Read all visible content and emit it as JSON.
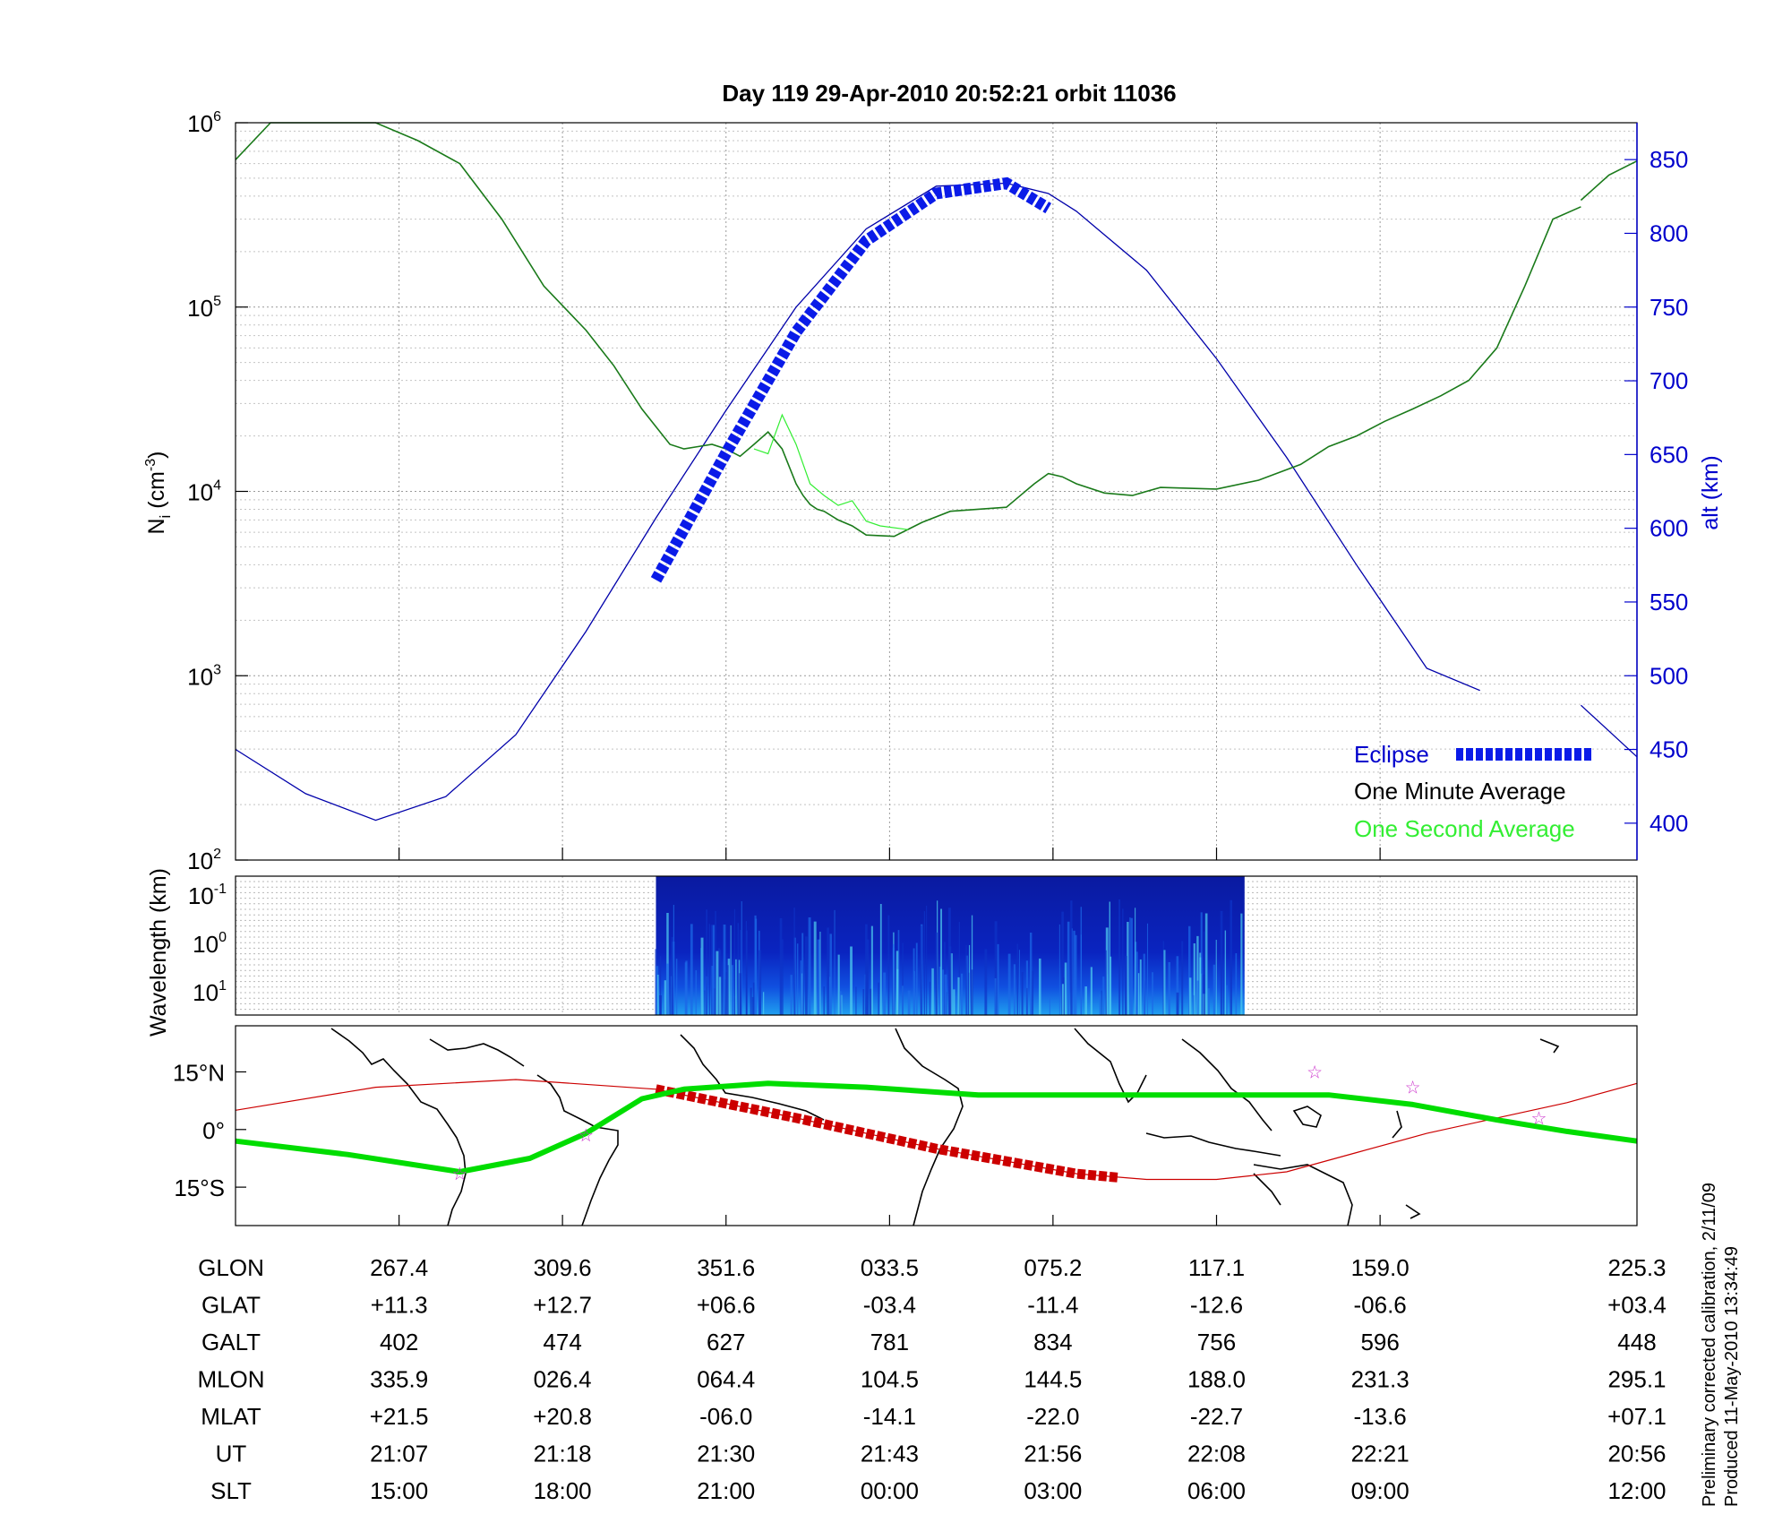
{
  "title": "Day 119  29-Apr-2010 20:52:21   orbit 11036",
  "side_note": [
    "Preliminary corrected calibration, 2/11/09",
    "Produced 11-May-2010 13:34:49"
  ],
  "colors": {
    "ni_line": "#1a7a1a",
    "ni_fast": "#33ee33",
    "alt_line": "#0000aa",
    "eclipse": "#0a1be8",
    "track": "#cc0000",
    "equator": "#00dd00",
    "axis_right": "#0000cc",
    "star": "#cc33cc"
  },
  "chart_data": [
    {
      "type": "line",
      "panel": "density",
      "ylabel_left": "N_i (cm^-3)",
      "ylabel_right": "alt (km)",
      "yscale_left": "log",
      "ylim_left": [
        100,
        1000000
      ],
      "left_ticks": [
        {
          "base": "10",
          "exp": "2"
        },
        {
          "base": "10",
          "exp": "3"
        },
        {
          "base": "10",
          "exp": "4"
        },
        {
          "base": "10",
          "exp": "5"
        },
        {
          "base": "10",
          "exp": "6"
        }
      ],
      "ylim_right": [
        375,
        875
      ],
      "right_ticks": [
        "400",
        "450",
        "500",
        "550",
        "600",
        "650",
        "700",
        "750",
        "800",
        "850"
      ],
      "xlim": [
        0,
        1
      ],
      "grid": true,
      "legend_position": "bottom-right",
      "legend": [
        "Eclipse",
        "One Minute Average",
        "One Second Average"
      ],
      "series": [
        {
          "name": "One Minute Average",
          "x": [
            0.0,
            0.025,
            0.06,
            0.1,
            0.13,
            0.16,
            0.19,
            0.22,
            0.25,
            0.27,
            0.29,
            0.31,
            0.32,
            0.33,
            0.34,
            0.35,
            0.36,
            0.37,
            0.38,
            0.39,
            0.4,
            0.405,
            0.41,
            0.415,
            0.42,
            0.43,
            0.44,
            0.45,
            0.47,
            0.49,
            0.51,
            0.53,
            0.55,
            0.57,
            0.58,
            0.59,
            0.6,
            0.62,
            0.64,
            0.65,
            0.66,
            0.7,
            0.73,
            0.76,
            0.78,
            0.8,
            0.82,
            0.84,
            0.86,
            0.88,
            0.9,
            0.92,
            0.94,
            0.96
          ],
          "y": [
            630000,
            1000000,
            1000000,
            1000000,
            800000,
            600000,
            300000,
            130000,
            75000,
            48000,
            28000,
            18000,
            17000,
            17500,
            18000,
            17000,
            15500,
            18000,
            21000,
            17000,
            11000,
            9500,
            8500,
            8000,
            7800,
            7000,
            6500,
            5800,
            5700,
            6800,
            7800,
            8000,
            8200,
            11000,
            12500,
            12000,
            11000,
            9800,
            9500,
            10000,
            10500,
            10300,
            11500,
            14000,
            17500,
            20000,
            24000,
            28000,
            33000,
            40000,
            60000,
            130000,
            300000,
            350000
          ]
        },
        {
          "name": "One Minute Average",
          "x": [
            0.96,
            0.98,
            1.0
          ],
          "y": [
            380000,
            520000,
            620000
          ]
        },
        {
          "name": "One Second Average",
          "x": [
            0.37,
            0.38,
            0.39,
            0.4,
            0.41,
            0.42,
            0.43,
            0.44,
            0.45,
            0.46,
            0.48
          ],
          "y": [
            17000,
            16000,
            26000,
            18000,
            11000,
            9500,
            8400,
            8900,
            6900,
            6500,
            6200
          ]
        },
        {
          "name": "alt (km)",
          "x": [
            0.0,
            0.05,
            0.1,
            0.15,
            0.2,
            0.25,
            0.3,
            0.35,
            0.4,
            0.45,
            0.5,
            0.55,
            0.58,
            0.6,
            0.65,
            0.7,
            0.75,
            0.8,
            0.85,
            0.888
          ],
          "y": [
            450,
            420,
            402,
            418,
            460,
            530,
            607,
            680,
            750,
            803,
            832,
            834,
            827,
            815,
            775,
            715,
            648,
            575,
            505,
            490
          ]
        },
        {
          "name": "alt (km)",
          "x": [
            0.96,
            1.0
          ],
          "y": [
            480,
            445
          ]
        },
        {
          "name": "Eclipse",
          "x": [
            0.3,
            0.35,
            0.4,
            0.45,
            0.5,
            0.55,
            0.58
          ],
          "y": [
            565,
            651,
            733,
            795,
            827,
            834,
            817
          ]
        }
      ]
    },
    {
      "type": "heatmap",
      "panel": "spectrogram",
      "ylabel": "Wavelength (km)",
      "y_ticks": [
        {
          "base": "10",
          "exp": "-1"
        },
        {
          "base": "10",
          "exp": "0"
        },
        {
          "base": "10",
          "exp": "1"
        }
      ],
      "x_span": [
        0.3,
        0.72
      ]
    },
    {
      "type": "line",
      "panel": "map",
      "lat_ticks": [
        "15°N",
        "0°",
        "15°S"
      ],
      "ylim": [
        -25,
        27
      ],
      "xlim": [
        0,
        1
      ],
      "series": [
        {
          "name": "track",
          "x": [
            0.0,
            0.1,
            0.2,
            0.3,
            0.4,
            0.5,
            0.6,
            0.65,
            0.7,
            0.75,
            0.8,
            0.85,
            0.9,
            0.95,
            1.0
          ],
          "y": [
            5,
            11,
            13,
            10.5,
            3,
            -5,
            -11.5,
            -13,
            -13,
            -11,
            -6,
            -1,
            3,
            7,
            12
          ]
        },
        {
          "name": "track-eclipse",
          "x": [
            0.3,
            0.4,
            0.5,
            0.6,
            0.63
          ],
          "y": [
            10.5,
            3,
            -5,
            -11.5,
            -12.5
          ]
        },
        {
          "name": "magnetic-equator",
          "x": [
            0.0,
            0.08,
            0.16,
            0.21,
            0.25,
            0.29,
            0.32,
            0.38,
            0.45,
            0.53,
            0.6,
            0.7,
            0.78,
            0.84,
            0.9,
            0.95,
            1.0
          ],
          "y": [
            -3,
            -6.5,
            -11,
            -7.5,
            -1,
            8,
            10.5,
            12,
            11,
            9,
            9,
            9,
            9,
            6.5,
            2.5,
            -0.5,
            -3
          ]
        },
        {
          "name": "stars",
          "x": [
            0.16,
            0.25,
            0.77,
            0.84,
            0.93
          ],
          "y": [
            -11.5,
            -1.5,
            15,
            11,
            3
          ]
        }
      ]
    }
  ],
  "table": {
    "row_labels": [
      "GLON",
      "GLAT",
      "GALT",
      "MLON",
      "MLAT",
      "UT",
      "SLT"
    ],
    "columns": [
      {
        "x": 0.1167,
        "values": [
          "267.4",
          "+11.3",
          "402",
          "335.9",
          "+21.5",
          "21:07",
          "15:00"
        ]
      },
      {
        "x": 0.2333,
        "values": [
          "309.6",
          "+12.7",
          "474",
          "026.4",
          "+20.8",
          "21:18",
          "18:00"
        ]
      },
      {
        "x": 0.35,
        "values": [
          "351.6",
          "+06.6",
          "627",
          "064.4",
          "-06.0",
          "21:30",
          "21:00"
        ]
      },
      {
        "x": 0.4667,
        "values": [
          "033.5",
          "-03.4",
          "781",
          "104.5",
          "-14.1",
          "21:43",
          "00:00"
        ]
      },
      {
        "x": 0.5833,
        "values": [
          "075.2",
          "-11.4",
          "834",
          "144.5",
          "-22.0",
          "21:56",
          "03:00"
        ]
      },
      {
        "x": 0.7,
        "values": [
          "117.1",
          "-12.6",
          "756",
          "188.0",
          "-22.7",
          "22:08",
          "06:00"
        ]
      },
      {
        "x": 0.8167,
        "values": [
          "159.0",
          "-06.6",
          "596",
          "231.3",
          "-13.6",
          "22:21",
          "09:00"
        ]
      },
      {
        "x": 1.0,
        "values": [
          "225.3",
          "+03.4",
          "448",
          "295.1",
          "+07.1",
          "20:56",
          "12:00"
        ]
      }
    ]
  }
}
